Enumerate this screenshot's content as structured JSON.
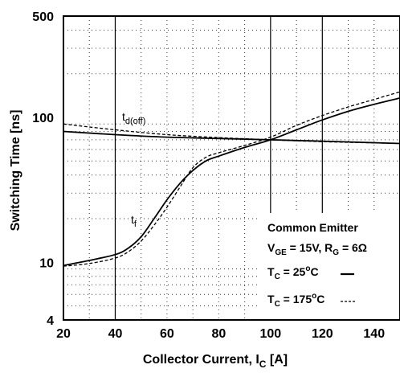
{
  "chart_data": {
    "type": "line",
    "xlabel": "Collector Current, I",
    "xlabel_sub": "C",
    "xlabel_unit": " [A]",
    "ylabel": "Switching Time [ns]",
    "xlim": [
      20,
      150
    ],
    "ylim": [
      4,
      500
    ],
    "yscale": "log",
    "grid": true,
    "x_ticks": [
      20,
      40,
      60,
      80,
      100,
      120,
      140
    ],
    "y_ticks": [
      4,
      10,
      100,
      500
    ],
    "x_tick_labels": [
      "20",
      "40",
      "60",
      "80",
      "100",
      "120",
      "140"
    ],
    "y_tick_labels": [
      "4",
      "10",
      "100",
      "500"
    ],
    "legend": {
      "title": "Common Emitter",
      "line1": {
        "a": "V",
        "a_sub": "GE",
        "b": " = 15V, R",
        "b_sub": "G",
        "c": " = 6Ω"
      },
      "line2": {
        "a": "T",
        "a_sub": "C",
        "b": " = 25",
        "sup": "o",
        "c": "C"
      },
      "line3": {
        "a": "T",
        "a_sub": "C",
        "b": " = 175",
        "sup": "o",
        "c": "C"
      }
    },
    "curve_labels": {
      "td_off": {
        "main": "t",
        "sub": "d(off)"
      },
      "tf": {
        "main": "t",
        "sub": "f"
      }
    },
    "series": [
      {
        "condition": "Tc=25°C",
        "quantity": "td(off)",
        "style": "solid",
        "x": [
          20,
          40,
          60,
          80,
          100,
          120,
          150
        ],
        "y": [
          80,
          76,
          73,
          71.5,
          70,
          68.5,
          66
        ]
      },
      {
        "condition": "Tc=175°C",
        "quantity": "td(off)",
        "style": "dashed",
        "x": [
          20,
          40,
          60,
          80,
          100,
          120,
          150
        ],
        "y": [
          90,
          82,
          76,
          72.5,
          70,
          68,
          66
        ]
      },
      {
        "condition": "Tc=25°C",
        "quantity": "tf",
        "style": "solid",
        "x": [
          20,
          30,
          40,
          45,
          50,
          55,
          60,
          65,
          70,
          75,
          80,
          90,
          100,
          110,
          120,
          130,
          140,
          150
        ],
        "y": [
          9.5,
          10.3,
          11.3,
          12.5,
          15,
          20,
          27,
          35,
          43,
          50,
          54,
          62,
          70,
          82,
          96,
          110,
          123,
          136
        ]
      },
      {
        "condition": "Tc=175°C",
        "quantity": "tf",
        "style": "dashed",
        "x": [
          20,
          30,
          40,
          45,
          50,
          55,
          60,
          65,
          70,
          75,
          80,
          90,
          100,
          110,
          120,
          130,
          140,
          150
        ],
        "y": [
          9.4,
          9.8,
          10.7,
          11.8,
          14,
          18,
          24,
          33,
          45,
          53,
          57,
          64,
          73,
          88,
          103,
          118,
          133,
          150
        ]
      }
    ]
  }
}
